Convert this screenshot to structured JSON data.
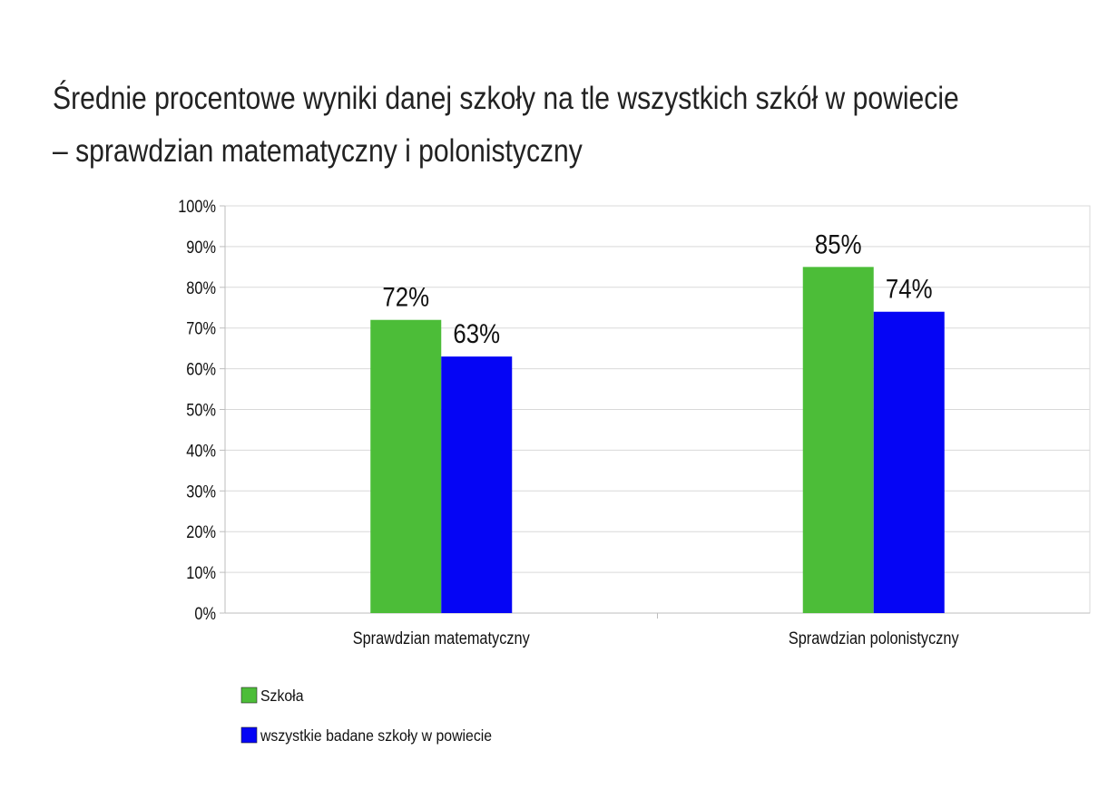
{
  "chart_data": {
    "type": "bar",
    "title": "Średnie procentowe wyniki danej szkoły na tle wszystkich szkół w powiecie",
    "subtitle": "– sprawdzian matematyczny i polonistyczny",
    "categories": [
      "Sprawdzian matematyczny",
      "Sprawdzian polonistyczny"
    ],
    "series": [
      {
        "name": "Szkoła",
        "values": [
          72,
          85
        ],
        "labels": [
          "72%",
          "85%"
        ],
        "color": "#4cbd38"
      },
      {
        "name": "wszystkie badane szkoły w powiecie",
        "values": [
          63,
          74
        ],
        "labels": [
          "63%",
          "74%"
        ],
        "color": "#0505f5"
      }
    ],
    "ylim": [
      0,
      100
    ],
    "yticks": [
      "0%",
      "10%",
      "20%",
      "30%",
      "40%",
      "50%",
      "60%",
      "70%",
      "80%",
      "90%",
      "100%"
    ],
    "grid": true,
    "legend": "bottom-left"
  }
}
